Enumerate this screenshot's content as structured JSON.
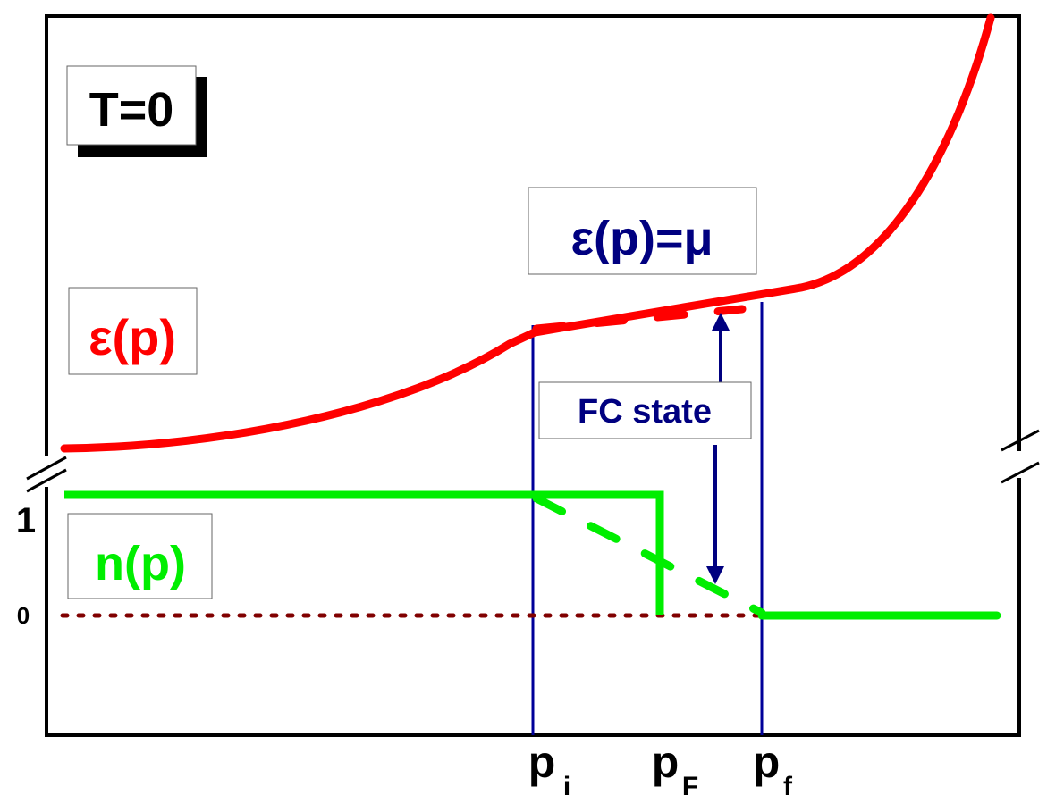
{
  "labels": {
    "temperature": "T=0",
    "energy": "ε(p)",
    "condition": "ε(p)=μ",
    "fc_state": "FC state",
    "occupation": "n(p)",
    "tick_one": "1",
    "tick_zero": "0",
    "p_i": "p",
    "p_i_sub": "i",
    "p_F": "p",
    "p_F_sub": "F",
    "p_f": "p",
    "p_f_sub": "f"
  },
  "colors": {
    "energy_curve": "#ff0000",
    "occupation_curve": "#00ee00",
    "vertical_lines": "#000099",
    "arrow": "#000080",
    "baseline_dots": "#800000",
    "frame": "#000000"
  }
}
